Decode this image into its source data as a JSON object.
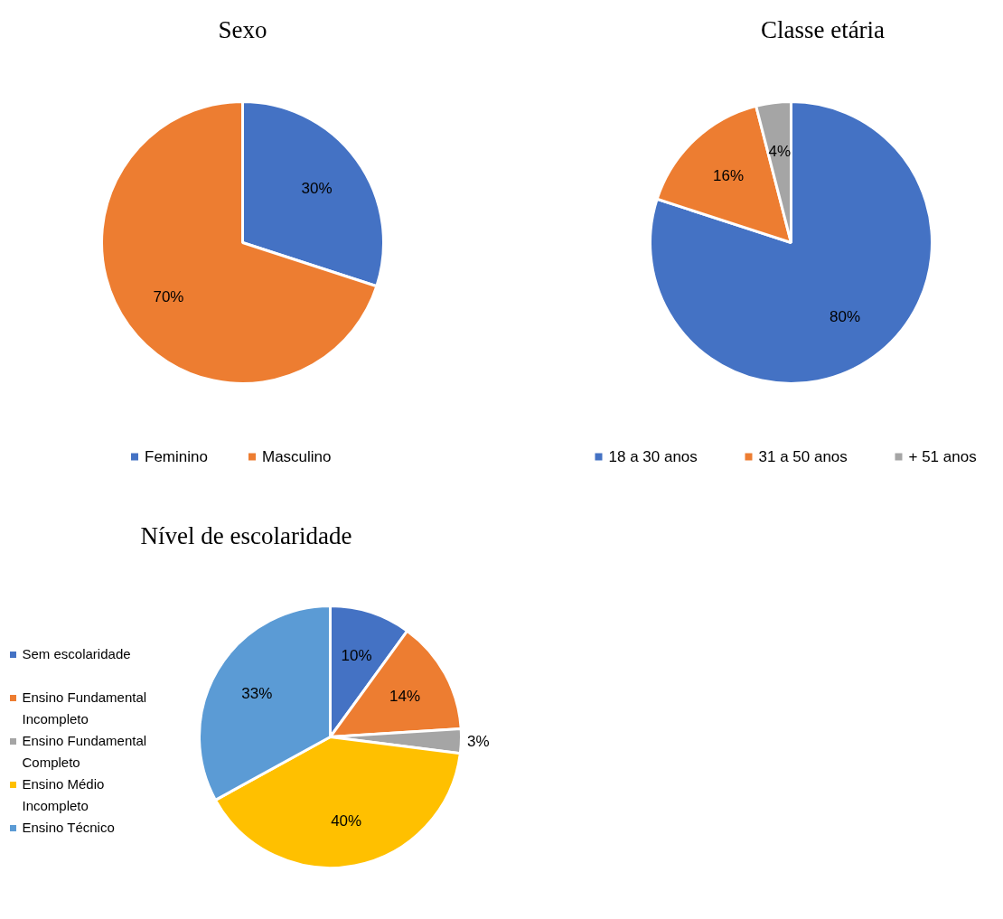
{
  "chart_data": [
    {
      "type": "pie",
      "title": "Sexo",
      "categories": [
        "Feminino",
        "Masculino"
      ],
      "values": [
        30,
        70
      ],
      "colors": [
        "#4472c4",
        "#ed7d31"
      ],
      "value_labels": [
        "30%",
        "70%"
      ],
      "legend": "bottom"
    },
    {
      "type": "pie",
      "title": "Classe etária",
      "categories": [
        "18 a 30 anos",
        "31 a 50 anos",
        "+ 51 anos"
      ],
      "values": [
        80,
        16,
        4
      ],
      "colors": [
        "#4472c4",
        "#ed7d31",
        "#a5a5a5"
      ],
      "value_labels": [
        "80%",
        "16%",
        "4%"
      ],
      "legend": "bottom"
    },
    {
      "type": "pie",
      "title": "Nível de escolaridade",
      "categories": [
        "Sem escolaridade",
        "Ensino Fundamental Incompleto",
        "Ensino Fundamental Completo",
        "Ensino Médio Incompleto",
        "Ensino Técnico"
      ],
      "values": [
        10,
        14,
        3,
        40,
        33
      ],
      "colors": [
        "#4472c4",
        "#ed7d31",
        "#a5a5a5",
        "#ffc000",
        "#5b9bd5"
      ],
      "value_labels": [
        "10%",
        "14%",
        "3%",
        "40%",
        "33%"
      ],
      "legend": "left"
    }
  ]
}
